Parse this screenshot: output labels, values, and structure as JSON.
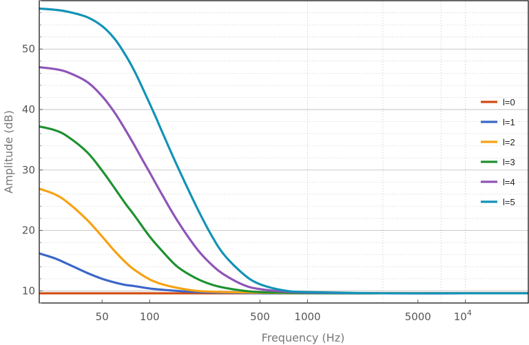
{
  "chart_data": {
    "type": "line",
    "xscale": "log",
    "xlabel": "Frequency (Hz)",
    "ylabel": "Amplitude (dB)",
    "xlim": [
      20,
      25000
    ],
    "ylim": [
      8,
      58
    ],
    "grid": true,
    "legend_position": "right",
    "x_ticks": [
      {
        "value": 50,
        "label": "50"
      },
      {
        "value": 100,
        "label": "100"
      },
      {
        "value": 500,
        "label": "500"
      },
      {
        "value": 1000,
        "label": "1000"
      },
      {
        "value": 5000,
        "label": "5000"
      },
      {
        "value": 10000,
        "label": "10",
        "sup": "4"
      }
    ],
    "y_ticks": [
      {
        "value": 10,
        "label": "10"
      },
      {
        "value": 20,
        "label": "20"
      },
      {
        "value": 30,
        "label": "30"
      },
      {
        "value": 40,
        "label": "40"
      },
      {
        "value": 50,
        "label": "50"
      }
    ],
    "series": [
      {
        "name": "l=0",
        "color": "#d24a10",
        "x": [
          20,
          50,
          100,
          1000,
          10000,
          25000
        ],
        "y": [
          9.6,
          9.6,
          9.6,
          9.6,
          9.6,
          9.6
        ]
      },
      {
        "name": "l=1",
        "color": "#3b66c8",
        "x": [
          20,
          25,
          30,
          40,
          50,
          60,
          70,
          80,
          100,
          120,
          150,
          200,
          300,
          500,
          1000,
          3000,
          10000,
          25000
        ],
        "y": [
          16.2,
          15.4,
          14.5,
          13.0,
          12.0,
          11.4,
          11.0,
          10.8,
          10.4,
          10.2,
          10.0,
          9.8,
          9.7,
          9.6,
          9.6,
          9.6,
          9.6,
          9.6
        ]
      },
      {
        "name": "l=2",
        "color": "#f7a10f",
        "x": [
          20,
          25,
          30,
          40,
          50,
          60,
          70,
          80,
          100,
          120,
          150,
          200,
          300,
          500,
          1000,
          3000,
          10000,
          25000
        ],
        "y": [
          26.9,
          26.0,
          24.7,
          21.8,
          19.0,
          16.6,
          14.8,
          13.5,
          11.9,
          11.1,
          10.5,
          10.0,
          9.8,
          9.7,
          9.6,
          9.6,
          9.6,
          9.6
        ]
      },
      {
        "name": "l=3",
        "color": "#1e9130",
        "x": [
          20,
          25,
          30,
          40,
          50,
          60,
          70,
          80,
          100,
          120,
          150,
          200,
          250,
          300,
          400,
          500,
          700,
          1000,
          3000,
          10000,
          25000
        ],
        "y": [
          37.2,
          36.6,
          35.6,
          33.0,
          29.9,
          27.0,
          24.5,
          22.5,
          19.0,
          16.6,
          14.0,
          12.0,
          11.0,
          10.5,
          10.0,
          9.8,
          9.7,
          9.6,
          9.6,
          9.6,
          9.6
        ]
      },
      {
        "name": "l=4",
        "color": "#8e55b8",
        "x": [
          20,
          25,
          30,
          40,
          50,
          60,
          70,
          80,
          90,
          100,
          120,
          150,
          200,
          250,
          300,
          400,
          500,
          700,
          1000,
          3000,
          10000,
          25000
        ],
        "y": [
          47.0,
          46.7,
          46.2,
          44.6,
          42.2,
          39.5,
          36.7,
          34.1,
          31.7,
          29.6,
          25.9,
          21.6,
          16.9,
          14.2,
          12.6,
          10.9,
          10.3,
          9.9,
          9.7,
          9.6,
          9.6,
          9.6
        ]
      },
      {
        "name": "l=5",
        "color": "#1193b6",
        "x": [
          20,
          25,
          30,
          40,
          50,
          60,
          70,
          80,
          90,
          100,
          110,
          120,
          150,
          200,
          250,
          300,
          400,
          500,
          700,
          1000,
          3000,
          10000,
          25000
        ],
        "y": [
          56.7,
          56.5,
          56.2,
          55.3,
          53.8,
          51.7,
          49.1,
          46.4,
          43.6,
          41.0,
          38.6,
          36.3,
          30.6,
          23.7,
          18.9,
          15.8,
          12.6,
          11.1,
          10.1,
          9.8,
          9.6,
          9.6,
          9.6
        ]
      }
    ]
  }
}
